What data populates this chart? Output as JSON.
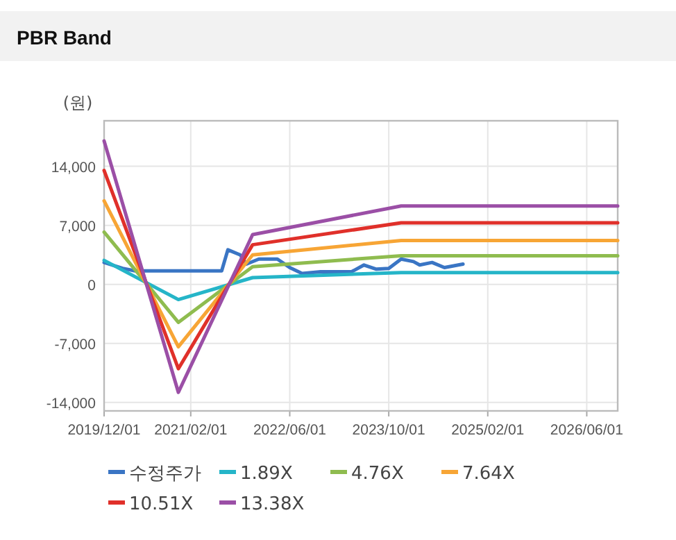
{
  "chart_data": {
    "type": "line",
    "title": "PBR Band",
    "ylabel": "(원)",
    "xlim": [
      "2019-12-01",
      "2026-11-01"
    ],
    "ylim": [
      -15000,
      19400
    ],
    "xticks": [
      {
        "value": "2019-12-01",
        "label": "2019/12/01"
      },
      {
        "value": "2021-02-01",
        "label": "2021/02/01"
      },
      {
        "value": "2022-06-01",
        "label": "2022/06/01"
      },
      {
        "value": "2023-10-01",
        "label": "2023/10/01"
      },
      {
        "value": "2025-02-01",
        "label": "2025/02/01"
      },
      {
        "value": "2026-06-01",
        "label": "2026/06/01"
      }
    ],
    "yticks": [
      {
        "value": -14000,
        "label": "-14,000"
      },
      {
        "value": -7000,
        "label": "-7,000"
      },
      0,
      {
        "value": 7000,
        "label": "7,000"
      },
      {
        "value": 14000,
        "label": "14,000"
      }
    ],
    "grid": true,
    "legend": "bottom",
    "marker": "none",
    "line_style": "solid",
    "series": [
      {
        "name": "수정주가",
        "color": "#3a75c4",
        "x": [
          "2019-12",
          "2020-03",
          "2020-05",
          "2021-07",
          "2021-08",
          "2021-10",
          "2021-11",
          "2022-01",
          "2022-04",
          "2022-06",
          "2022-08",
          "2022-11",
          "2023-04",
          "2023-06",
          "2023-08",
          "2023-10",
          "2023-12",
          "2024-02",
          "2024-03",
          "2024-05",
          "2024-07",
          "2024-10"
        ],
        "values": [
          2600,
          1900,
          1600,
          1600,
          4100,
          3500,
          2400,
          3000,
          3000,
          2000,
          1300,
          1500,
          1500,
          2300,
          1800,
          1900,
          3000,
          2700,
          2300,
          2600,
          2000,
          2400
        ]
      },
      {
        "name": "1.89X",
        "color": "#25b5c8",
        "x": [
          "2019-12",
          "2020-12",
          "2021-12",
          "2023-12",
          "2026-11"
        ],
        "values": [
          2850,
          -1800,
          800,
          1400,
          1400
        ]
      },
      {
        "name": "4.76X",
        "color": "#8fbc4f",
        "x": [
          "2019-12",
          "2020-12",
          "2021-12",
          "2023-12",
          "2026-11"
        ],
        "values": [
          6200,
          -4500,
          2100,
          3400,
          3400
        ]
      },
      {
        "name": "7.64X",
        "color": "#f7a535",
        "x": [
          "2019-12",
          "2020-12",
          "2021-12",
          "2023-12",
          "2026-11"
        ],
        "values": [
          9900,
          -7400,
          3500,
          5200,
          5200
        ]
      },
      {
        "name": "10.51X",
        "color": "#e0302a",
        "x": [
          "2019-12",
          "2020-12",
          "2021-12",
          "2023-12",
          "2026-11"
        ],
        "values": [
          13500,
          -10000,
          4700,
          7300,
          7300
        ]
      },
      {
        "name": "13.38X",
        "color": "#9b4fa6",
        "x": [
          "2019-12",
          "2020-12",
          "2021-12",
          "2023-12",
          "2026-11"
        ],
        "values": [
          17000,
          -12800,
          5900,
          9300,
          9300
        ]
      }
    ]
  }
}
